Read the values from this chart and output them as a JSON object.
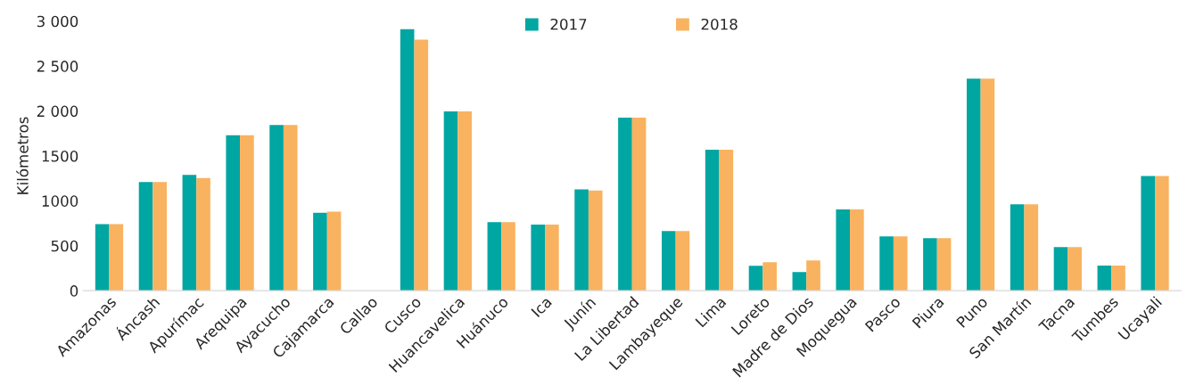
{
  "chart_data": {
    "type": "bar",
    "ylabel": "Kilómetros",
    "categories": [
      "Amazonas",
      "Áncash",
      "Apurímac",
      "Arequipa",
      "Ayacucho",
      "Cajamarca",
      "Callao",
      "Cusco",
      "Huancavelica",
      "Huánuco",
      "Ica",
      "Junín",
      "La Libertad",
      "Lambayeque",
      "Lima",
      "Loreto",
      "Madre de Dios",
      "Moquegua",
      "Pasco",
      "Piura",
      "Puno",
      "San Martín",
      "Tacna",
      "Tumbes",
      "Ucayali"
    ],
    "series": [
      {
        "name": "2017",
        "color": "#00a6a2",
        "values": [
          740,
          1210,
          1290,
          1730,
          1845,
          867,
          0,
          2910,
          1995,
          762,
          735,
          1127,
          1925,
          665,
          1570,
          276,
          207,
          904,
          604,
          584,
          2360,
          961,
          486,
          280,
          1277
        ]
      },
      {
        "name": "2018",
        "color": "#f9b25f",
        "values": [
          740,
          1210,
          1255,
          1730,
          1845,
          880,
          0,
          2795,
          1995,
          762,
          735,
          1115,
          1925,
          665,
          1570,
          316,
          336,
          904,
          604,
          584,
          2360,
          961,
          486,
          280,
          1277
        ]
      }
    ],
    "ylim": [
      0,
      3000
    ],
    "yticks": [
      0,
      500,
      {
        "value": 1000,
        "label": "1000"
      },
      {
        "value": 1500,
        "label": "1500"
      },
      {
        "value": 2000,
        "label": "2 000"
      },
      {
        "value": 2500,
        "label": "2 500"
      },
      {
        "value": 3000,
        "label": "3 000"
      }
    ],
    "grid": false,
    "legend": "top"
  }
}
